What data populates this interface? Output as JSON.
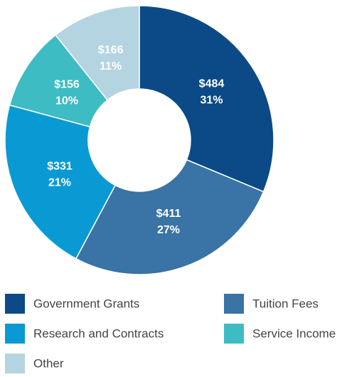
{
  "chart_data": {
    "type": "donut",
    "categories": [
      "Government Grants",
      "Tuition Fees",
      "Research and Contracts",
      "Service Income",
      "Other"
    ],
    "values": [
      484,
      411,
      331,
      156,
      166
    ],
    "value_labels": [
      "$484",
      "$411",
      "$331",
      "$156",
      "$166"
    ],
    "percent_labels": [
      "31%",
      "27%",
      "21%",
      "10%",
      "11%"
    ],
    "colors": [
      "#0b4a87",
      "#3a73a5",
      "#0a9ad3",
      "#3dbcc3",
      "#b5d4e2"
    ],
    "legend": "bottom"
  }
}
